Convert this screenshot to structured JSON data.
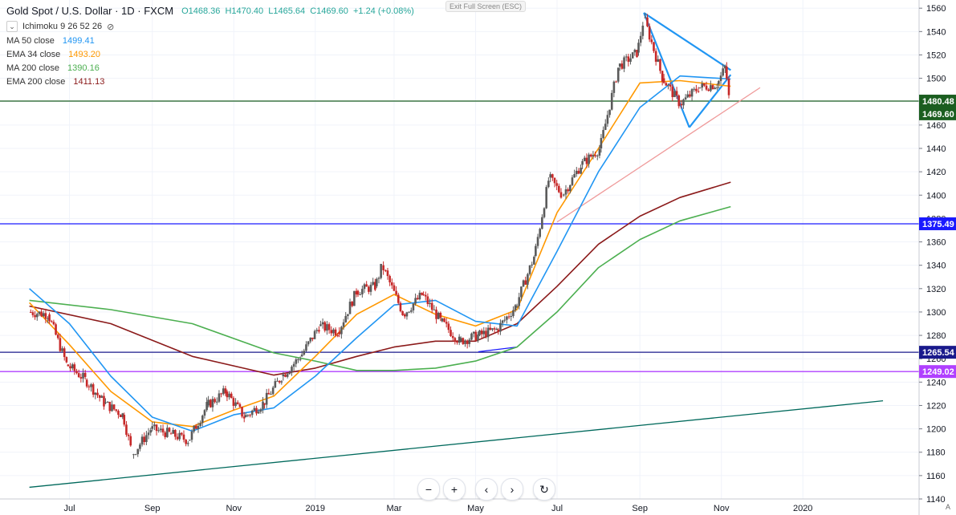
{
  "header": {
    "symbol": "Gold Spot / U.S. Dollar · 1D · FXCM",
    "open": "O1468.36",
    "high": "H1470.40",
    "low": "L1465.64",
    "close": "C1469.60",
    "change": "+1.24 (+0.08%)",
    "indicator_name": "Ichimoku 9 26 52 26",
    "exit_fullscreen": "Exit Full Screen (ESC)"
  },
  "indicators": [
    {
      "label": "MA  50 close",
      "value": "1499.41",
      "color": "#2196f3"
    },
    {
      "label": "EMA 34 close",
      "value": "1493.20",
      "color": "#ff9800"
    },
    {
      "label": "MA  200 close",
      "value": "1390.16",
      "color": "#4caf50"
    },
    {
      "label": "EMA 200 close",
      "value": "1411.13",
      "color": "#8b1a1a"
    }
  ],
  "toolbar": {
    "zoom_out": "−",
    "zoom_in": "+",
    "left": "‹",
    "right": "›",
    "reset": "↻",
    "auto": "A"
  },
  "chart_data": {
    "type": "line",
    "y_axis_ticks": [
      1140,
      1160,
      1180,
      1200,
      1220,
      1240,
      1260,
      1280,
      1300,
      1320,
      1340,
      1360,
      1380,
      1400,
      1420,
      1440,
      1460,
      1480,
      1500,
      1520,
      1540,
      1560
    ],
    "x_axis_ticks": [
      "Jul",
      "Sep",
      "Nov",
      "2019",
      "Mar",
      "May",
      "Jul",
      "Sep",
      "Nov",
      "2020"
    ],
    "ylim": [
      1140,
      1567
    ],
    "price_series": [
      {
        "date": "2018-06-01",
        "price": 1300
      },
      {
        "date": "2018-06-15",
        "price": 1298
      },
      {
        "date": "2018-06-29",
        "price": 1255
      },
      {
        "date": "2018-07-13",
        "price": 1242
      },
      {
        "date": "2018-07-27",
        "price": 1222
      },
      {
        "date": "2018-08-10",
        "price": 1212
      },
      {
        "date": "2018-08-17",
        "price": 1178
      },
      {
        "date": "2018-08-31",
        "price": 1200
      },
      {
        "date": "2018-09-14",
        "price": 1196
      },
      {
        "date": "2018-09-28",
        "price": 1190
      },
      {
        "date": "2018-10-12",
        "price": 1220
      },
      {
        "date": "2018-10-26",
        "price": 1232
      },
      {
        "date": "2018-11-09",
        "price": 1210
      },
      {
        "date": "2018-11-23",
        "price": 1222
      },
      {
        "date": "2018-12-07",
        "price": 1245
      },
      {
        "date": "2018-12-21",
        "price": 1262
      },
      {
        "date": "2019-01-04",
        "price": 1288
      },
      {
        "date": "2019-01-18",
        "price": 1283
      },
      {
        "date": "2019-02-01",
        "price": 1318
      },
      {
        "date": "2019-02-15",
        "price": 1322
      },
      {
        "date": "2019-02-20",
        "price": 1340
      },
      {
        "date": "2019-03-08",
        "price": 1298
      },
      {
        "date": "2019-03-22",
        "price": 1315
      },
      {
        "date": "2019-04-05",
        "price": 1292
      },
      {
        "date": "2019-04-19",
        "price": 1275
      },
      {
        "date": "2019-05-03",
        "price": 1280
      },
      {
        "date": "2019-05-17",
        "price": 1285
      },
      {
        "date": "2019-05-31",
        "price": 1305
      },
      {
        "date": "2019-06-14",
        "price": 1348
      },
      {
        "date": "2019-06-25",
        "price": 1415
      },
      {
        "date": "2019-07-05",
        "price": 1400
      },
      {
        "date": "2019-07-19",
        "price": 1426
      },
      {
        "date": "2019-08-02",
        "price": 1440
      },
      {
        "date": "2019-08-16",
        "price": 1510
      },
      {
        "date": "2019-08-30",
        "price": 1522
      },
      {
        "date": "2019-09-04",
        "price": 1552
      },
      {
        "date": "2019-09-18",
        "price": 1500
      },
      {
        "date": "2019-10-01",
        "price": 1478
      },
      {
        "date": "2019-10-15",
        "price": 1492
      },
      {
        "date": "2019-10-29",
        "price": 1495
      },
      {
        "date": "2019-11-04",
        "price": 1510
      },
      {
        "date": "2019-11-08",
        "price": 1469.6
      }
    ],
    "moving_averages": {
      "ma50": [
        {
          "date": "2018-06-01",
          "value": 1320
        },
        {
          "date": "2018-07-01",
          "value": 1290
        },
        {
          "date": "2018-08-01",
          "value": 1245
        },
        {
          "date": "2018-09-01",
          "value": 1210
        },
        {
          "date": "2018-10-01",
          "value": 1198
        },
        {
          "date": "2018-11-01",
          "value": 1212
        },
        {
          "date": "2018-12-01",
          "value": 1218
        },
        {
          "date": "2019-01-01",
          "value": 1245
        },
        {
          "date": "2019-02-01",
          "value": 1278
        },
        {
          "date": "2019-03-01",
          "value": 1306
        },
        {
          "date": "2019-04-01",
          "value": 1310
        },
        {
          "date": "2019-05-01",
          "value": 1292
        },
        {
          "date": "2019-06-01",
          "value": 1288
        },
        {
          "date": "2019-07-01",
          "value": 1352
        },
        {
          "date": "2019-08-01",
          "value": 1420
        },
        {
          "date": "2019-09-01",
          "value": 1475
        },
        {
          "date": "2019-10-01",
          "value": 1502
        },
        {
          "date": "2019-11-08",
          "value": 1499.41
        }
      ],
      "ema34": [
        {
          "date": "2018-06-01",
          "value": 1308
        },
        {
          "date": "2018-07-01",
          "value": 1272
        },
        {
          "date": "2018-08-01",
          "value": 1232
        },
        {
          "date": "2018-09-01",
          "value": 1206
        },
        {
          "date": "2018-10-01",
          "value": 1202
        },
        {
          "date": "2018-11-01",
          "value": 1216
        },
        {
          "date": "2018-12-01",
          "value": 1228
        },
        {
          "date": "2019-01-01",
          "value": 1262
        },
        {
          "date": "2019-02-01",
          "value": 1298
        },
        {
          "date": "2019-03-01",
          "value": 1315
        },
        {
          "date": "2019-04-01",
          "value": 1298
        },
        {
          "date": "2019-05-01",
          "value": 1288
        },
        {
          "date": "2019-06-01",
          "value": 1302
        },
        {
          "date": "2019-07-01",
          "value": 1385
        },
        {
          "date": "2019-08-01",
          "value": 1440
        },
        {
          "date": "2019-09-01",
          "value": 1496
        },
        {
          "date": "2019-10-01",
          "value": 1498
        },
        {
          "date": "2019-11-08",
          "value": 1493.2
        }
      ],
      "ma200": [
        {
          "date": "2018-06-01",
          "value": 1310
        },
        {
          "date": "2018-08-01",
          "value": 1302
        },
        {
          "date": "2018-10-01",
          "value": 1290
        },
        {
          "date": "2018-12-01",
          "value": 1265
        },
        {
          "date": "2019-01-01",
          "value": 1258
        },
        {
          "date": "2019-02-01",
          "value": 1250
        },
        {
          "date": "2019-03-01",
          "value": 1250
        },
        {
          "date": "2019-04-01",
          "value": 1252
        },
        {
          "date": "2019-05-01",
          "value": 1258
        },
        {
          "date": "2019-06-01",
          "value": 1270
        },
        {
          "date": "2019-07-01",
          "value": 1300
        },
        {
          "date": "2019-08-01",
          "value": 1338
        },
        {
          "date": "2019-09-01",
          "value": 1362
        },
        {
          "date": "2019-10-01",
          "value": 1378
        },
        {
          "date": "2019-11-08",
          "value": 1390.16
        }
      ],
      "ema200": [
        {
          "date": "2018-06-01",
          "value": 1305
        },
        {
          "date": "2018-08-01",
          "value": 1290
        },
        {
          "date": "2018-10-01",
          "value": 1262
        },
        {
          "date": "2018-12-01",
          "value": 1246
        },
        {
          "date": "2019-01-01",
          "value": 1252
        },
        {
          "date": "2019-02-01",
          "value": 1262
        },
        {
          "date": "2019-03-01",
          "value": 1270
        },
        {
          "date": "2019-04-01",
          "value": 1275
        },
        {
          "date": "2019-05-01",
          "value": 1275
        },
        {
          "date": "2019-06-01",
          "value": 1290
        },
        {
          "date": "2019-07-01",
          "value": 1322
        },
        {
          "date": "2019-08-01",
          "value": 1358
        },
        {
          "date": "2019-09-01",
          "value": 1382
        },
        {
          "date": "2019-10-01",
          "value": 1398
        },
        {
          "date": "2019-11-08",
          "value": 1411.13
        }
      ]
    },
    "horizontal_levels": [
      {
        "price": 1480.48,
        "label": "1480.48",
        "color": "#1b5e20"
      },
      {
        "price": 1375.49,
        "label": "1375.49",
        "color": "#1a1aff"
      },
      {
        "price": 1265.54,
        "label": "1265.54",
        "color": "#1a1a8c"
      },
      {
        "price": 1249.02,
        "label": "1249.02",
        "color": "#b040ff"
      }
    ],
    "current_price": {
      "price": 1469.6,
      "label": "1469.60",
      "color": "#1b5e20"
    },
    "trendlines": [
      {
        "name": "long-term-support",
        "from": {
          "date": "2018-06-01",
          "price": 1150
        },
        "to": {
          "date": "2020-03-01",
          "price": 1224
        },
        "color": "#00695c"
      },
      {
        "name": "channel-support",
        "from": {
          "date": "2019-07-01",
          "price": 1377
        },
        "to": {
          "date": "2019-11-30",
          "price": 1492
        },
        "color": "#ef9a9a"
      },
      {
        "name": "triangle-upper",
        "from": {
          "date": "2019-09-04",
          "price": 1556
        },
        "to": {
          "date": "2019-11-08",
          "price": 1507
        },
        "color": "#2196f3"
      },
      {
        "name": "triangle-lower",
        "from": {
          "date": "2019-10-08",
          "price": 1458
        },
        "to": {
          "date": "2019-11-08",
          "price": 1503
        },
        "color": "#2196f3"
      },
      {
        "name": "triangle-left",
        "from": {
          "date": "2019-09-04",
          "price": 1556
        },
        "to": {
          "date": "2019-10-08",
          "price": 1458
        },
        "color": "#2196f3"
      },
      {
        "name": "may-support",
        "from": {
          "date": "2019-05-03",
          "price": 1266
        },
        "to": {
          "date": "2019-06-01",
          "price": 1270
        },
        "color": "#1a1aff"
      }
    ]
  }
}
